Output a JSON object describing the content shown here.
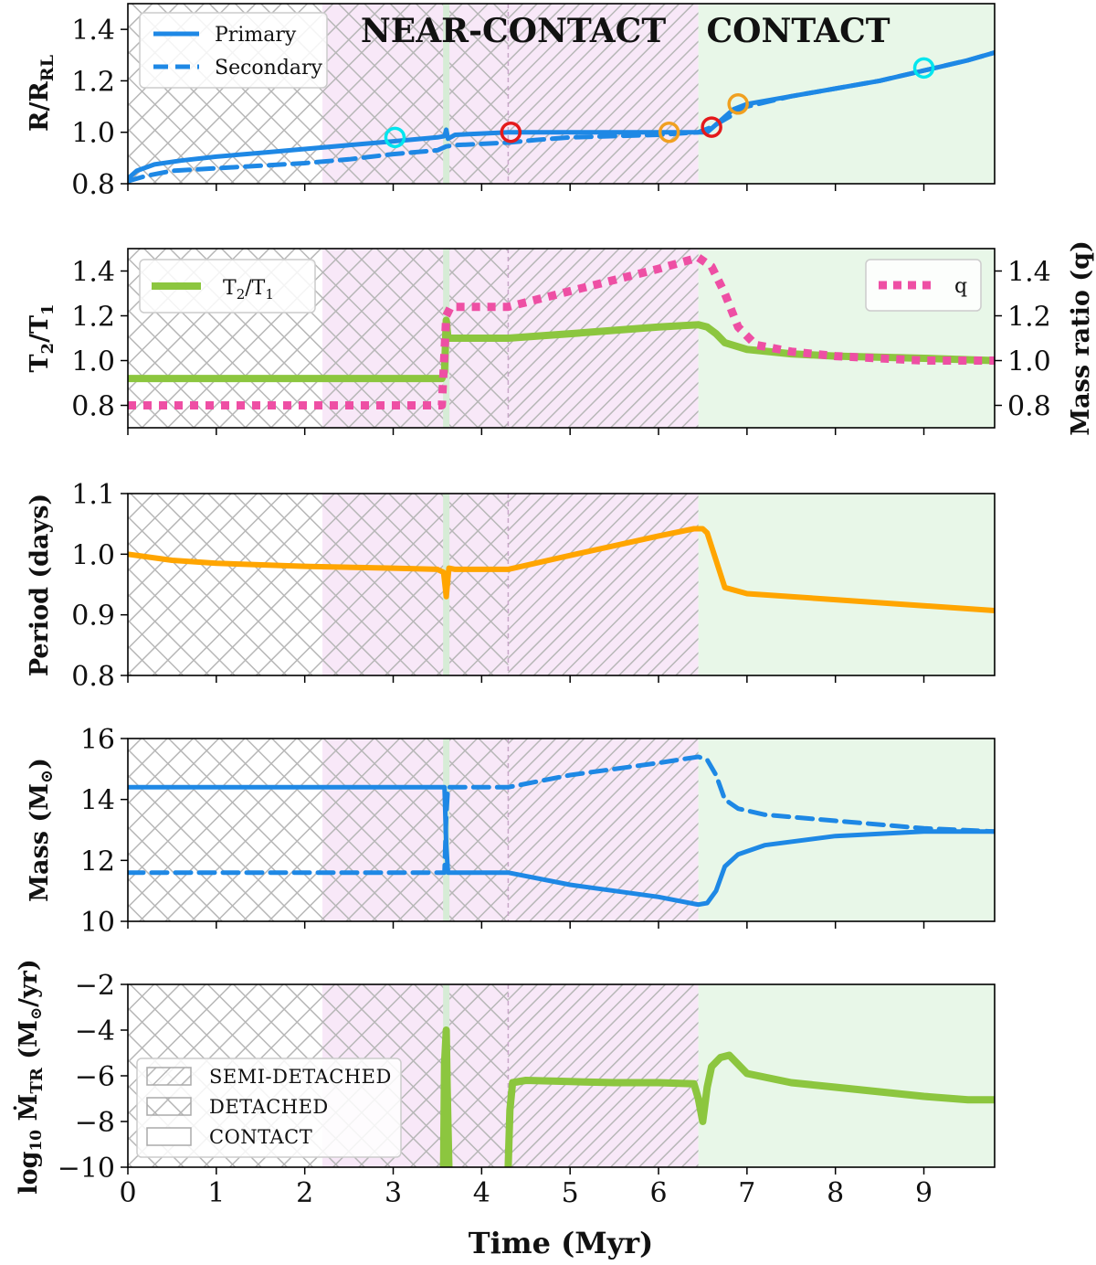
{
  "figure": {
    "xlabel": "Time (Myr)",
    "xticks": [
      "0",
      "1",
      "2",
      "3",
      "4",
      "5",
      "6",
      "7",
      "8",
      "9"
    ],
    "xlim": [
      0,
      9.8
    ],
    "region_labels": [
      {
        "text": "NEAR-CONTACT",
        "color": "#bf1fbf"
      },
      {
        "text": "CONTACT",
        "color": "#127312"
      }
    ],
    "colors": {
      "blue": "#1e88e5",
      "green": "#8cc63f",
      "orange": "#ffa500",
      "pink": "#ee4fa4",
      "contact_bg": "#e8f7e8",
      "near_contact_bg": "#f8e8f8",
      "hatch": "#b7b7b7",
      "event_line": "#d6ecd6"
    }
  },
  "chart_data": [
    {
      "type": "line",
      "title": "",
      "ylabel_main": "R/R",
      "ylabel_sub": "RL",
      "ylim": [
        0.8,
        1.5
      ],
      "yticks": [
        "0.8",
        "1.0",
        "1.2",
        "1.4"
      ],
      "regions": [
        {
          "kind": "detached",
          "x": [
            0,
            2.2
          ]
        },
        {
          "kind": "near-contact detached",
          "x": [
            2.2,
            4.3
          ]
        },
        {
          "kind": "near-contact semi-detached",
          "x": [
            4.3,
            6.45
          ]
        },
        {
          "kind": "contact",
          "x": [
            6.45,
            9.8
          ]
        }
      ],
      "event_time": 3.6,
      "series": [
        {
          "name": "Primary",
          "style": "solid",
          "color": "#1e88e5",
          "x": [
            0,
            0.1,
            0.3,
            0.6,
            1,
            1.5,
            2,
            2.5,
            3,
            3.5,
            3.58,
            3.6,
            3.62,
            3.7,
            4,
            4.3,
            4.6,
            5,
            5.5,
            6,
            6.3,
            6.45,
            6.55,
            6.65,
            6.75,
            6.85,
            7,
            7.5,
            8,
            8.5,
            9,
            9.5,
            9.8
          ],
          "y": [
            0.82,
            0.85,
            0.875,
            0.89,
            0.905,
            0.92,
            0.935,
            0.95,
            0.965,
            0.98,
            0.985,
            1.01,
            0.975,
            0.99,
            0.995,
            1.0,
            1.0,
            1.0,
            1.0,
            1.0,
            1.0,
            1.0,
            1.0,
            1.03,
            1.06,
            1.09,
            1.11,
            1.14,
            1.17,
            1.2,
            1.24,
            1.28,
            1.31
          ]
        },
        {
          "name": "Secondary",
          "style": "dashed",
          "color": "#1e88e5",
          "x": [
            0,
            0.2,
            0.5,
            1,
            1.5,
            2,
            2.5,
            3,
            3.5,
            3.6,
            3.7,
            4,
            4.3,
            4.6,
            5,
            5.5,
            6,
            6.45,
            6.6,
            6.8,
            7,
            7.5,
            8,
            8.5,
            9,
            9.5,
            9.8
          ],
          "y": [
            0.81,
            0.83,
            0.85,
            0.86,
            0.87,
            0.88,
            0.895,
            0.915,
            0.93,
            0.945,
            0.95,
            0.955,
            0.96,
            0.97,
            0.98,
            0.985,
            0.99,
            1.0,
            1.02,
            1.06,
            1.1,
            1.14,
            1.17,
            1.2,
            1.24,
            1.28,
            1.31
          ]
        }
      ],
      "markers": [
        {
          "x": 3.02,
          "y": 0.98,
          "color": "#00e5ee"
        },
        {
          "x": 4.33,
          "y": 1.0,
          "color": "#e41a1c"
        },
        {
          "x": 6.12,
          "y": 1.0,
          "color": "#f0a020"
        },
        {
          "x": 6.6,
          "y": 1.02,
          "color": "#e41a1c"
        },
        {
          "x": 6.9,
          "y": 1.11,
          "color": "#f0a020"
        },
        {
          "x": 9.0,
          "y": 1.25,
          "color": "#00e5ee"
        }
      ],
      "legend": {
        "position": "top-left",
        "entries": [
          {
            "label": "Primary",
            "style": "solid"
          },
          {
            "label": "Secondary",
            "style": "dashed"
          }
        ]
      }
    },
    {
      "type": "line",
      "ylabel_main": "T",
      "ylabel_sub1": "2",
      "ylabel_mid": "/T",
      "ylabel_sub2": "1",
      "ylabel_right": "Mass ratio (q)",
      "ylim": [
        0.7,
        1.5
      ],
      "yticks": [
        "0.8",
        "1.0",
        "1.2",
        "1.4"
      ],
      "ylim_right": [
        0.7,
        1.5
      ],
      "yticks_right": [
        "0.8",
        "1.0",
        "1.2",
        "1.4"
      ],
      "series": [
        {
          "name": "T2/T1",
          "axis": "left",
          "style": "solid",
          "color": "#8cc63f",
          "x": [
            0,
            1,
            2,
            3,
            3.55,
            3.58,
            3.6,
            3.62,
            3.65,
            4,
            4.3,
            5,
            6,
            6.45,
            6.55,
            6.65,
            6.75,
            7,
            7.5,
            8,
            9,
            9.8
          ],
          "y": [
            0.92,
            0.92,
            0.92,
            0.92,
            0.92,
            0.95,
            1.18,
            1.1,
            1.1,
            1.1,
            1.1,
            1.12,
            1.15,
            1.16,
            1.15,
            1.12,
            1.08,
            1.05,
            1.03,
            1.02,
            1.01,
            1.0
          ]
        },
        {
          "name": "q",
          "axis": "right",
          "style": "dotted",
          "color": "#ee4fa4",
          "x": [
            0,
            1,
            2,
            3,
            3.55,
            3.6,
            3.65,
            4,
            4.3,
            5,
            6,
            6.45,
            6.6,
            6.75,
            6.9,
            7.1,
            7.5,
            8,
            9,
            9.8
          ],
          "y": [
            0.8,
            0.8,
            0.8,
            0.8,
            0.8,
            1.2,
            1.24,
            1.24,
            1.24,
            1.31,
            1.41,
            1.46,
            1.42,
            1.3,
            1.15,
            1.07,
            1.04,
            1.02,
            1.0,
            1.0
          ]
        }
      ],
      "legend_left": {
        "position": "top-left",
        "label_main": "T",
        "label_sub1": "2",
        "label_mid": "/T",
        "label_sub2": "1"
      },
      "legend_right": {
        "position": "top-right",
        "label": "q"
      }
    },
    {
      "type": "line",
      "ylabel": "Period (days)",
      "ylim": [
        0.8,
        1.1
      ],
      "yticks": [
        "0.8",
        "0.9",
        "1.0",
        "1.1"
      ],
      "series": [
        {
          "name": "Period",
          "style": "solid",
          "color": "#ffa500",
          "x": [
            0,
            0.5,
            1,
            2,
            3,
            3.5,
            3.57,
            3.6,
            3.63,
            3.7,
            4,
            4.3,
            5,
            6,
            6.4,
            6.5,
            6.55,
            6.65,
            6.75,
            7,
            8,
            9,
            9.8
          ],
          "y": [
            1.0,
            0.99,
            0.985,
            0.98,
            0.977,
            0.975,
            0.97,
            0.93,
            0.977,
            0.975,
            0.975,
            0.975,
            0.998,
            1.03,
            1.042,
            1.042,
            1.035,
            0.99,
            0.945,
            0.935,
            0.925,
            0.915,
            0.907
          ]
        }
      ]
    },
    {
      "type": "line",
      "ylabel_main": "Mass (M",
      "ylabel_close": ")",
      "ylim": [
        10,
        16
      ],
      "yticks": [
        "10",
        "12",
        "14",
        "16"
      ],
      "series": [
        {
          "name": "Primary mass",
          "style": "solid",
          "color": "#1e88e5",
          "x": [
            0,
            1,
            2,
            3,
            3.58,
            3.6,
            3.62,
            3.7,
            4,
            4.3,
            5,
            6,
            6.45,
            6.55,
            6.65,
            6.75,
            6.9,
            7.2,
            8,
            9,
            9.8
          ],
          "y": [
            14.4,
            14.4,
            14.4,
            14.4,
            14.4,
            12.5,
            11.6,
            11.6,
            11.6,
            11.6,
            11.2,
            10.8,
            10.55,
            10.6,
            11.0,
            11.8,
            12.2,
            12.5,
            12.8,
            12.95,
            12.95
          ]
        },
        {
          "name": "Secondary mass",
          "style": "dashed",
          "color": "#1e88e5",
          "x": [
            0,
            1,
            2,
            3,
            3.58,
            3.6,
            3.62,
            3.7,
            4,
            4.3,
            5,
            6,
            6.45,
            6.55,
            6.65,
            6.75,
            6.9,
            7.2,
            8,
            9,
            9.8
          ],
          "y": [
            11.6,
            11.6,
            11.6,
            11.6,
            11.6,
            13.5,
            14.4,
            14.4,
            14.4,
            14.4,
            14.8,
            15.2,
            15.4,
            15.3,
            14.8,
            14.0,
            13.7,
            13.5,
            13.3,
            13.05,
            12.95
          ]
        }
      ]
    },
    {
      "type": "line",
      "ylabel_main": "log",
      "ylabel_base": "10",
      "ylabel_dot": "Ṁ",
      "ylabel_sub": "TR",
      "ylabel_units": "(M",
      "ylabel_close": "/yr)",
      "ylim": [
        -10,
        -2
      ],
      "yticks": [
        "−10",
        "−8",
        "−6",
        "−4",
        "−2"
      ],
      "series": [
        {
          "name": "log10 Mdot_TR burst",
          "style": "solid",
          "color": "#8cc63f",
          "x": [
            3.57,
            3.58,
            3.6,
            3.61,
            3.63
          ],
          "y": [
            -10,
            -5.5,
            -4.0,
            -6.5,
            -10
          ]
        },
        {
          "name": "log10 Mdot_TR",
          "style": "solid",
          "color": "#8cc63f",
          "x": [
            4.3,
            4.32,
            4.35,
            4.5,
            5,
            5.5,
            6,
            6.4,
            6.45,
            6.5,
            6.55,
            6.6,
            6.7,
            6.8,
            6.9,
            7,
            7.5,
            8,
            8.5,
            9,
            9.5,
            9.8
          ],
          "y": [
            -10,
            -7.5,
            -6.3,
            -6.2,
            -6.25,
            -6.3,
            -6.3,
            -6.35,
            -7.0,
            -8.0,
            -6.5,
            -5.6,
            -5.2,
            -5.1,
            -5.5,
            -5.9,
            -6.3,
            -6.5,
            -6.7,
            -6.9,
            -7.05,
            -7.05
          ]
        }
      ],
      "legend": {
        "position": "bottom-left",
        "entries": [
          {
            "label": "SEMI-DETACHED",
            "kind": "semi"
          },
          {
            "label": "DETACHED",
            "kind": "detached"
          },
          {
            "label": "CONTACT",
            "kind": "contact"
          }
        ]
      }
    }
  ]
}
